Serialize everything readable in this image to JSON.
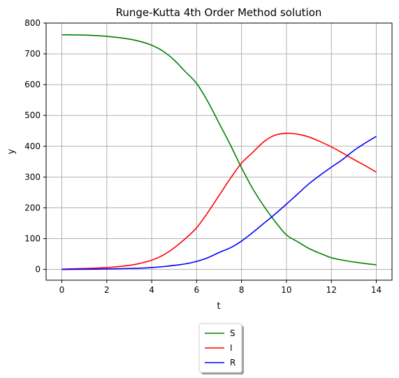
{
  "chart_data": {
    "type": "line",
    "title": "Runge-Kutta 4th Order Method solution",
    "xlabel": "t",
    "ylabel": "y",
    "xlim": [
      -0.7,
      14.7
    ],
    "ylim": [
      -35,
      800
    ],
    "xticks": [
      0,
      2,
      4,
      6,
      8,
      10,
      12,
      14
    ],
    "yticks": [
      0,
      100,
      200,
      300,
      400,
      500,
      600,
      700,
      800
    ],
    "grid": true,
    "legend_position": "below-center",
    "series": [
      {
        "name": "S",
        "color": "#008000",
        "x": [
          0,
          1,
          2,
          3,
          3.5,
          4,
          4.5,
          5,
          5.5,
          6,
          6.5,
          7,
          7.5,
          8,
          8.5,
          9,
          9.5,
          10,
          10.5,
          11,
          11.5,
          12,
          12.5,
          13,
          13.5,
          14
        ],
        "y": [
          762,
          761,
          757,
          748,
          740,
          728,
          709,
          680,
          642,
          604,
          545,
          475,
          405,
          330,
          262,
          205,
          155,
          112,
          90,
          68,
          52,
          38,
          30,
          24,
          19,
          15
        ]
      },
      {
        "name": "I",
        "color": "#ff0000",
        "x": [
          0,
          1,
          2,
          3,
          3.5,
          4,
          4.5,
          5,
          5.5,
          6,
          6.5,
          7,
          7.5,
          8,
          8.5,
          9,
          9.5,
          10,
          10.5,
          11,
          11.5,
          12,
          12.5,
          13,
          13.5,
          14
        ],
        "y": [
          1,
          3,
          6,
          13,
          20,
          30,
          46,
          70,
          100,
          135,
          185,
          240,
          295,
          345,
          380,
          415,
          436,
          442,
          439,
          430,
          415,
          398,
          378,
          357,
          337,
          316
        ]
      },
      {
        "name": "R",
        "color": "#0000ff",
        "x": [
          0,
          1,
          2,
          3,
          3.5,
          4,
          4.5,
          5,
          5.5,
          6,
          6.5,
          7,
          7.5,
          8,
          8.5,
          9,
          9.5,
          10,
          10.5,
          11,
          11.5,
          12,
          12.5,
          13,
          13.5,
          14
        ],
        "y": [
          0,
          0.5,
          1.5,
          3,
          4,
          6,
          9,
          13,
          18,
          26,
          38,
          55,
          70,
          92,
          120,
          150,
          180,
          212,
          245,
          278,
          306,
          332,
          357,
          386,
          410,
          432
        ]
      }
    ]
  }
}
